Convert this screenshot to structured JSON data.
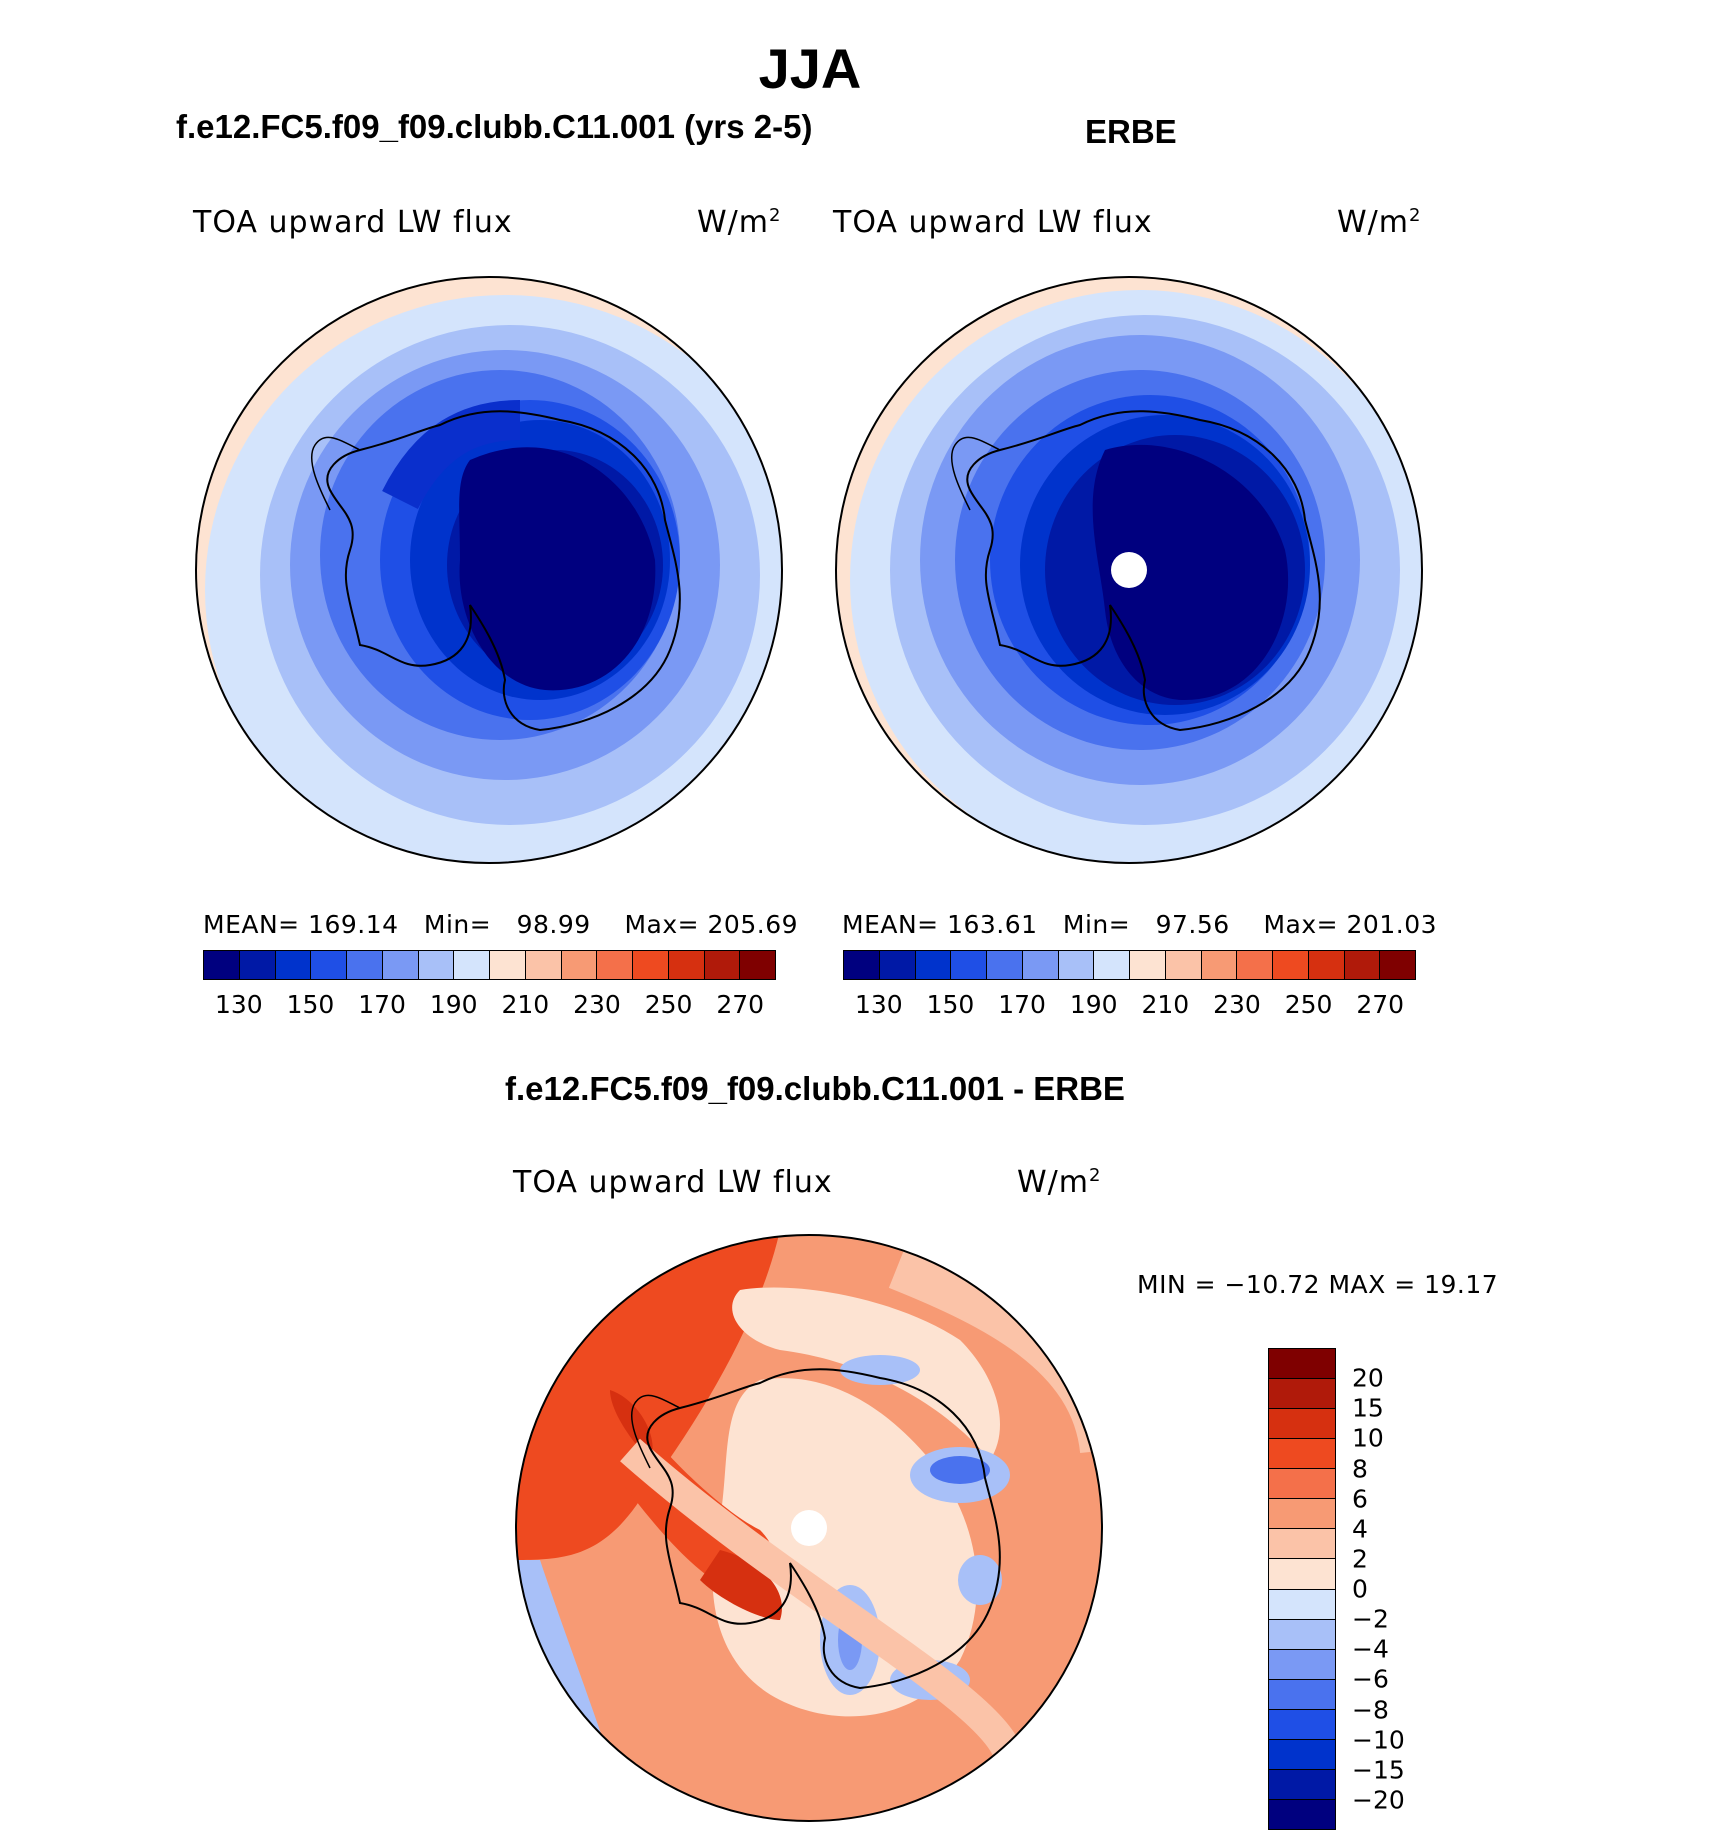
{
  "title": "JJA",
  "panels": {
    "model": {
      "title": "f.e12.FC5.f09_f09.clubb.C11.001 (yrs 2-5)",
      "variable": "TOA upward LW flux",
      "units": "W/m",
      "units_exp": "2",
      "stats": {
        "mean_label": "MEAN=",
        "mean": "169.14",
        "min_label": "Min=",
        "min": "98.99",
        "max_label": "Max=",
        "max": "205.69"
      }
    },
    "obs": {
      "title": "ERBE",
      "variable": "TOA upward LW flux",
      "units": "W/m",
      "units_exp": "2",
      "stats": {
        "mean_label": "MEAN=",
        "mean": "163.61",
        "min_label": "Min=",
        "min": "97.56",
        "max_label": "Max=",
        "max": "201.03"
      }
    },
    "diff": {
      "title": "f.e12.FC5.f09_f09.clubb.C11.001 - ERBE",
      "variable": "TOA upward LW flux",
      "units": "W/m",
      "units_exp": "2",
      "minmax": "MIN = −10.72 MAX =   19.17"
    }
  },
  "colorbar_abs": {
    "colors": [
      "#00007f",
      "#0019a6",
      "#0033cc",
      "#1f4fe6",
      "#4a72ee",
      "#7a99f4",
      "#a8c0f8",
      "#d4e4fc",
      "#fde3d2",
      "#fbc3a8",
      "#f79a74",
      "#f4704a",
      "#ee4a20",
      "#d63010",
      "#b01a0a",
      "#7f0000"
    ],
    "labels": [
      "130",
      "150",
      "170",
      "190",
      "210",
      "230",
      "250",
      "270"
    ]
  },
  "colorbar_diff": {
    "colors": [
      "#7f0000",
      "#b01a0a",
      "#d63010",
      "#ee4a20",
      "#f4704a",
      "#f79a74",
      "#fbc3a8",
      "#fde3d2",
      "#d4e4fc",
      "#a8c0f8",
      "#7a99f4",
      "#4a72ee",
      "#1f4fe6",
      "#0033cc",
      "#0019a6",
      "#00007f"
    ],
    "labels": [
      "20",
      "15",
      "10",
      "8",
      "6",
      "4",
      "2",
      "0",
      "−2",
      "−4",
      "−6",
      "−8",
      "−10",
      "−15",
      "−20"
    ]
  }
}
